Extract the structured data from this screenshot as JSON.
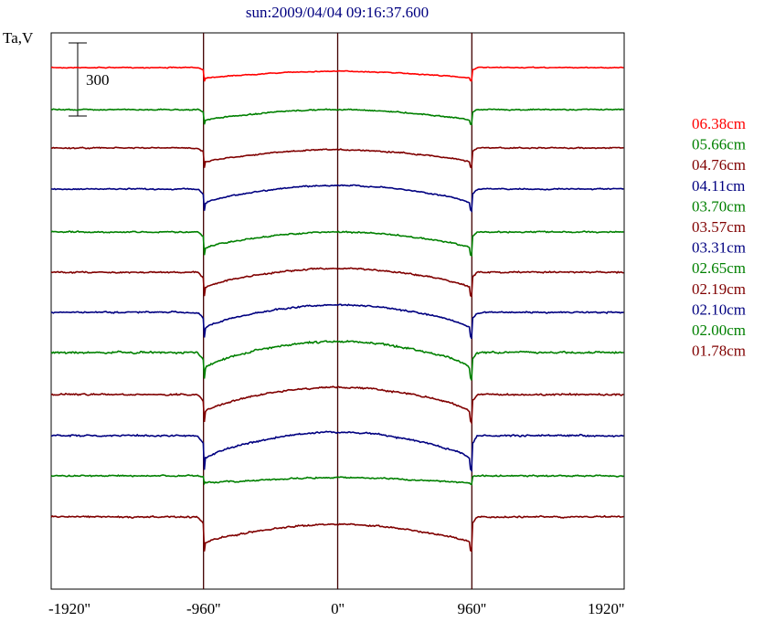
{
  "chart_data": {
    "type": "line",
    "title": "sun:2009/04/04 09:16:37.600",
    "ylabel": "Ta,V",
    "xlabel": "",
    "xlim": [
      -2050,
      2050
    ],
    "x_ticks": [
      -1920,
      -960,
      0,
      960,
      1920
    ],
    "x_tick_labels": [
      "-1920''",
      "-960''",
      "0''",
      "960''",
      "1920''"
    ],
    "vertical_lines": [
      -960,
      0,
      960
    ],
    "scale_bar": {
      "label": "300",
      "value": 300
    },
    "grid": false,
    "legend_position": "right",
    "series": [
      {
        "name": "06.38cm",
        "color": "#ff0000",
        "baseline": 74,
        "dip": 12,
        "dome": 4,
        "edge": 4,
        "noise": 0.6
      },
      {
        "name": "05.66cm",
        "color": "#008000",
        "baseline": 120,
        "dip": 16,
        "dome": 8,
        "edge": 5,
        "noise": 0.8
      },
      {
        "name": "04.76cm",
        "color": "#800000",
        "baseline": 162,
        "dip": 22,
        "dome": 10,
        "edge": 5,
        "noise": 0.9
      },
      {
        "name": "04.11cm",
        "color": "#000080",
        "baseline": 207,
        "dip": 28,
        "dome": 16,
        "edge": 6,
        "noise": 0.9
      },
      {
        "name": "03.70cm",
        "color": "#008000",
        "baseline": 254,
        "dip": 28,
        "dome": 14,
        "edge": 6,
        "noise": 1.0
      },
      {
        "name": "03.57cm",
        "color": "#800000",
        "baseline": 298,
        "dip": 32,
        "dome": 18,
        "edge": 6,
        "noise": 1.1
      },
      {
        "name": "03.31cm",
        "color": "#000080",
        "baseline": 342,
        "dip": 36,
        "dome": 22,
        "edge": 7,
        "noise": 1.1
      },
      {
        "name": "02.65cm",
        "color": "#008000",
        "baseline": 386,
        "dip": 40,
        "dome": 26,
        "edge": 7,
        "noise": 1.4
      },
      {
        "name": "02.19cm",
        "color": "#800000",
        "baseline": 432,
        "dip": 40,
        "dome": 24,
        "edge": 7,
        "noise": 1.2
      },
      {
        "name": "02.10cm",
        "color": "#000080",
        "baseline": 477,
        "dip": 44,
        "dome": 24,
        "edge": 9,
        "noise": 1.2
      },
      {
        "name": "02.00cm",
        "color": "#008000",
        "baseline": 521,
        "dip": 6,
        "dome": 2,
        "edge": 4,
        "noise": 1.0
      },
      {
        "name": "01.78cm",
        "color": "#800000",
        "baseline": 566,
        "dip": 36,
        "dome": 14,
        "edge": 8,
        "noise": 1.2
      }
    ]
  }
}
